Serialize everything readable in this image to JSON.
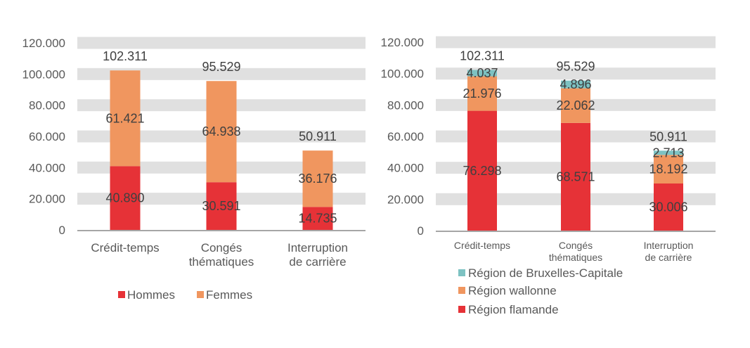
{
  "chart_data": [
    {
      "type": "bar",
      "stacked": true,
      "categories": [
        "Crédit-temps",
        "Congés thématiques",
        "Interruption de carrière"
      ],
      "series": [
        {
          "name": "Hommes",
          "values": [
            40890,
            30591,
            14735
          ],
          "color": "#E63237"
        },
        {
          "name": "Femmes",
          "values": [
            61421,
            64938,
            36176
          ],
          "color": "#F0965F"
        }
      ],
      "totals": [
        102311,
        95529,
        50911
      ],
      "ylim": [
        0,
        120000
      ],
      "yticks": [
        "0",
        "20.000",
        "40.000",
        "60.000",
        "80.000",
        "100.000",
        "120.000"
      ],
      "value_labels": {
        "series": [
          [
            "40.890",
            "30.591",
            "14.735"
          ],
          [
            "61.421",
            "64.938",
            "36.176"
          ]
        ],
        "totals": [
          "102.311",
          "95.529",
          "50.911"
        ]
      },
      "grid": "horizontal bands",
      "legend": "bottom"
    },
    {
      "type": "bar",
      "stacked": true,
      "categories": [
        "Crédit-temps",
        "Congés thématiques",
        "Interruption de carrière"
      ],
      "series": [
        {
          "name": "Région flamande",
          "values": [
            76298,
            68571,
            30006
          ],
          "color": "#E63237"
        },
        {
          "name": "Région wallonne",
          "values": [
            21976,
            22062,
            18192
          ],
          "color": "#F0965F"
        },
        {
          "name": "Région de Bruxelles-Capitale",
          "values": [
            4037,
            4896,
            2713
          ],
          "color": "#7DC2C2"
        }
      ],
      "totals": [
        102311,
        95529,
        50911
      ],
      "ylim": [
        0,
        120000
      ],
      "yticks": [
        "0",
        "20.000",
        "40.000",
        "60.000",
        "80.000",
        "100.000",
        "120.000"
      ],
      "value_labels": {
        "series": [
          [
            "76.298",
            "68.571",
            "30.006"
          ],
          [
            "21.976",
            "22.062",
            "18.192"
          ],
          [
            "4.037",
            "4.896",
            "2.713"
          ]
        ],
        "totals": [
          "102.311",
          "95.529",
          "50.911"
        ]
      },
      "grid": "horizontal bands",
      "legend": "bottom (vertical, reversed order)"
    }
  ]
}
